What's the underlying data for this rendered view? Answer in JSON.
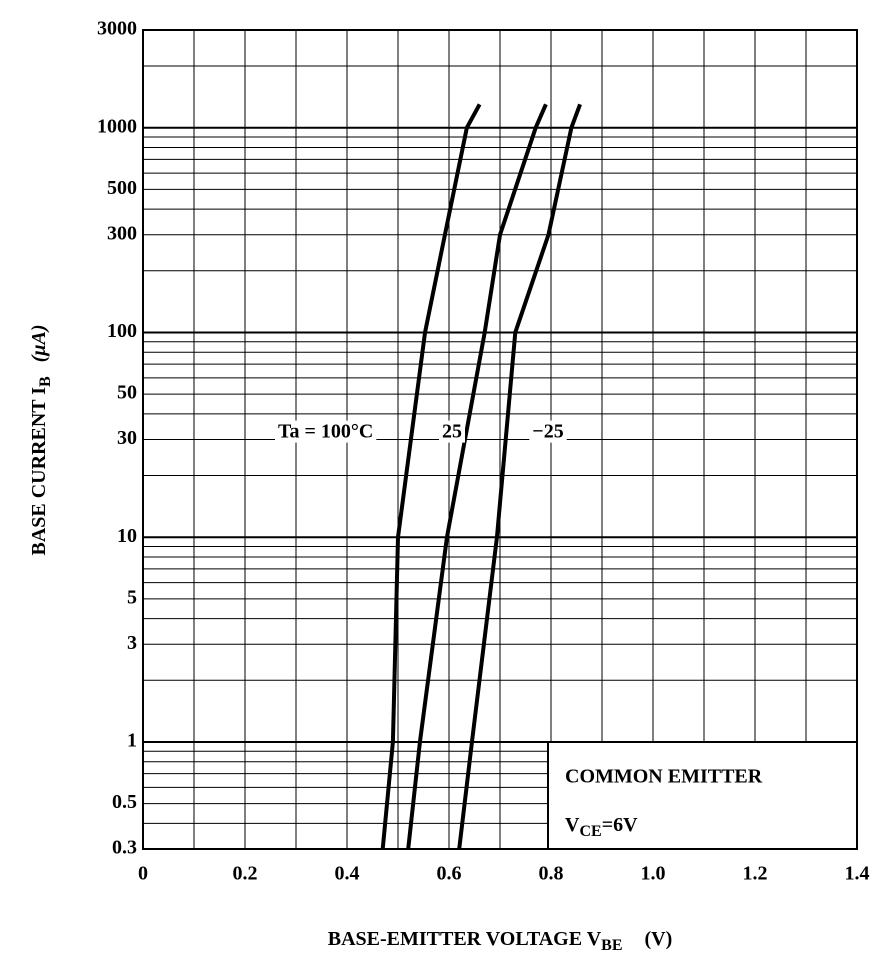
{
  "chart_data": {
    "type": "line",
    "log_y": true,
    "grid": true,
    "color": "#000000",
    "xlim": [
      0,
      1.4
    ],
    "ylim": [
      0.3,
      3000
    ],
    "xticks": [
      0,
      0.2,
      0.4,
      0.6,
      0.8,
      {
        "value": 1,
        "label": "1.0"
      },
      1.2,
      1.4
    ],
    "xgrid": [
      0.1,
      0.3,
      0.5,
      0.7,
      0.9,
      1.1,
      1.3
    ],
    "yticks": [
      0.3,
      0.5,
      1,
      3,
      5,
      10,
      30,
      50,
      100,
      300,
      500,
      1000,
      3000
    ],
    "ygrid": [
      0.4,
      0.6,
      0.7,
      0.8,
      0.9,
      2,
      4,
      6,
      7,
      8,
      9,
      20,
      40,
      60,
      70,
      80,
      90,
      200,
      400,
      600,
      700,
      800,
      900,
      2000
    ],
    "xlabel": {
      "text": "BASE-EMITTER VOLTAGE  V",
      "sub": "BE",
      "unit": "(V)"
    },
    "ylabel": {
      "text": "BASE CURRENT  I",
      "sub": "B",
      "unit": "(μA)"
    },
    "annotation": {
      "line1": "COMMON EMITTER",
      "v": "V",
      "sub": "CE",
      "rest": "=6V"
    },
    "series": [
      {
        "name": "Ta = 100°C",
        "x": [
          0.47,
          0.49,
          0.5,
          0.553,
          0.592,
          0.635,
          0.66
        ],
        "values": [
          0.3,
          1,
          10,
          100,
          300,
          1000,
          1300
        ]
      },
      {
        "name": "25",
        "x": [
          0.52,
          0.543,
          0.596,
          0.67,
          0.7,
          0.77,
          0.79
        ],
        "values": [
          0.3,
          1,
          10,
          100,
          300,
          1000,
          1300
        ]
      },
      {
        "name": "−25",
        "x": [
          0.62,
          0.645,
          0.694,
          0.73,
          0.795,
          0.84,
          0.857
        ],
        "values": [
          0.3,
          1,
          10,
          100,
          300,
          1000,
          1300
        ]
      }
    ]
  }
}
